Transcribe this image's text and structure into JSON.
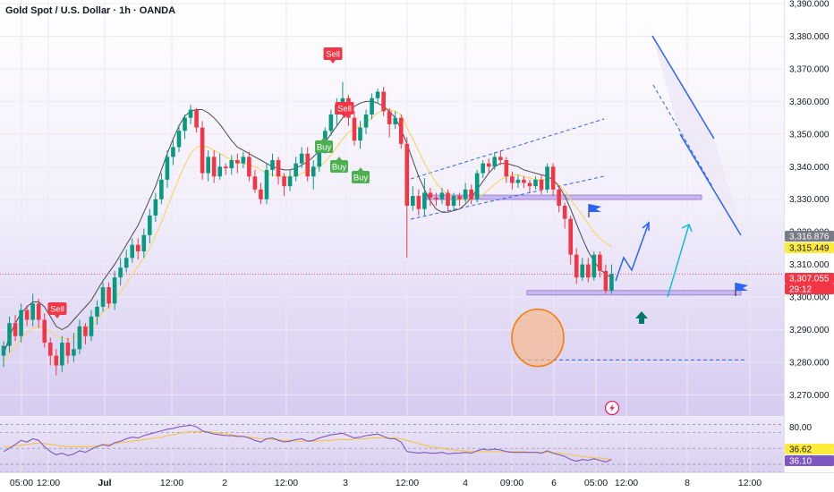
{
  "chart_data": {
    "type": "candlestick",
    "title": "Gold Spot / U.S. Dollar · 1h · OANDA",
    "price_axis": {
      "labels": [
        "3,390.000",
        "3,380.000",
        "3,370.000",
        "3,360.000",
        "3,350.000",
        "3,340.000",
        "3,330.000",
        "3,320.000",
        "3,310.000",
        "3,300.000",
        "3,290.000",
        "3,280.000",
        "3,270.000"
      ],
      "values": [
        3390,
        3380,
        3370,
        3360,
        3350,
        3340,
        3330,
        3320,
        3310,
        3300,
        3290,
        3280,
        3270
      ],
      "ylim": [
        3263.5,
        3391
      ]
    },
    "time_axis": {
      "labels": [
        "05:00",
        "12:00",
        "Jul",
        "12:00",
        "2",
        "12:00",
        "3",
        "12:00",
        "4",
        "09:00",
        "6",
        "05:00",
        "12:00",
        "8",
        "12:00"
      ],
      "bold": [
        false,
        false,
        true,
        false,
        false,
        false,
        false,
        false,
        false,
        false,
        false,
        false,
        false,
        false,
        false
      ]
    },
    "price_tags": [
      {
        "label": "3,316.876",
        "value": 3316.876,
        "bg": "#787b86",
        "fg": "#ffffff"
      },
      {
        "label": "3,315.449",
        "value": 3315.449,
        "bg": "#ffeb3b",
        "fg": "#131722"
      },
      {
        "label": "3,307.055",
        "value": 3307.055,
        "bg": "#f23645",
        "fg": "#ffffff"
      },
      {
        "label": "29:12",
        "value": 3304.6,
        "bg": "#f23645",
        "fg": "#ffffff"
      }
    ],
    "current_price": 3307.055,
    "candles": [
      [
        3282.0,
        3285.0,
        3278.5,
        3286.5
      ],
      [
        3285.0,
        3292.0,
        3283.0,
        3294.0
      ],
      [
        3292.0,
        3288.0,
        3286.5,
        3294.5
      ],
      [
        3288.0,
        3296.0,
        3286.0,
        3298.0
      ],
      [
        3296.0,
        3293.0,
        3291.0,
        3297.5
      ],
      [
        3293.0,
        3298.0,
        3291.0,
        3301.0
      ],
      [
        3298.0,
        3293.0,
        3290.5,
        3299.5
      ],
      [
        3293.0,
        3286.0,
        3284.5,
        3295.0
      ],
      [
        3286.0,
        3282.0,
        3279.0,
        3287.5
      ],
      [
        3282.0,
        3279.0,
        3276.0,
        3284.0
      ],
      [
        3279.0,
        3286.0,
        3277.0,
        3288.0
      ],
      [
        3286.0,
        3282.0,
        3279.5,
        3287.5
      ],
      [
        3282.0,
        3284.0,
        3280.0,
        3289.0
      ],
      [
        3284.0,
        3291.0,
        3282.5,
        3293.0
      ],
      [
        3291.0,
        3288.0,
        3285.5,
        3292.0
      ],
      [
        3288.0,
        3294.0,
        3286.5,
        3296.0
      ],
      [
        3294.0,
        3297.0,
        3291.5,
        3299.0
      ],
      [
        3297.0,
        3303.0,
        3295.5,
        3304.5
      ],
      [
        3303.0,
        3298.0,
        3296.5,
        3304.5
      ],
      [
        3298.0,
        3306.0,
        3296.0,
        3308.0
      ],
      [
        3306.0,
        3309.0,
        3303.5,
        3312.0
      ],
      [
        3309.0,
        3312.0,
        3307.5,
        3314.5
      ],
      [
        3312.0,
        3316.0,
        3310.5,
        3318.0
      ],
      [
        3316.0,
        3314.0,
        3311.5,
        3318.0
      ],
      [
        3314.0,
        3319.0,
        3312.0,
        3321.0
      ],
      [
        3319.0,
        3325.0,
        3316.5,
        3327.0
      ],
      [
        3325.0,
        3330.0,
        3323.0,
        3332.0
      ],
      [
        3330.0,
        3336.0,
        3328.5,
        3338.0
      ],
      [
        3336.0,
        3343.0,
        3333.5,
        3345.0
      ],
      [
        3343.0,
        3346.0,
        3340.5,
        3348.0
      ],
      [
        3346.0,
        3351.0,
        3344.5,
        3353.0
      ],
      [
        3351.0,
        3355.0,
        3348.5,
        3356.0
      ],
      [
        3355.0,
        3357.5,
        3353.0,
        3359.0
      ],
      [
        3357.5,
        3352.0,
        3350.5,
        3358.0
      ],
      [
        3352.0,
        3338.0,
        3336.0,
        3354.0
      ],
      [
        3338.0,
        3343.0,
        3335.5,
        3345.0
      ],
      [
        3343.0,
        3337.0,
        3335.0,
        3345.0
      ],
      [
        3337.0,
        3340.0,
        3336.0,
        3344.0
      ],
      [
        3340.0,
        3339.5,
        3337.5,
        3341.0
      ],
      [
        3339.5,
        3342.0,
        3337.5,
        3343.5
      ],
      [
        3342.0,
        3341.0,
        3338.0,
        3344.0
      ],
      [
        3341.0,
        3343.0,
        3339.5,
        3344.5
      ],
      [
        3343.0,
        3337.0,
        3335.5,
        3344.5
      ],
      [
        3337.0,
        3333.0,
        3332.0,
        3339.0
      ],
      [
        3333.0,
        3330.0,
        3328.5,
        3335.0
      ],
      [
        3330.0,
        3339.0,
        3328.5,
        3341.0
      ],
      [
        3339.0,
        3342.0,
        3337.0,
        3344.0
      ],
      [
        3342.0,
        3337.0,
        3334.5,
        3343.0
      ],
      [
        3337.0,
        3334.0,
        3331.0,
        3338.0
      ],
      [
        3334.0,
        3337.0,
        3332.5,
        3339.0
      ],
      [
        3337.0,
        3341.0,
        3335.5,
        3343.0
      ],
      [
        3341.0,
        3344.0,
        3339.5,
        3346.0
      ],
      [
        3344.0,
        3337.0,
        3335.5,
        3346.0
      ],
      [
        3337.0,
        3340.0,
        3333.0,
        3342.0
      ],
      [
        3340.0,
        3346.0,
        3338.5,
        3348.0
      ],
      [
        3346.0,
        3351.0,
        3344.0,
        3352.0
      ],
      [
        3351.0,
        3356.0,
        3349.5,
        3357.5
      ],
      [
        3356.0,
        3359.0,
        3352.5,
        3361.0
      ],
      [
        3359.0,
        3361.0,
        3356.0,
        3366.0
      ],
      [
        3361.0,
        3355.0,
        3352.5,
        3362.0
      ],
      [
        3355.0,
        3348.0,
        3346.5,
        3357.0
      ],
      [
        3348.0,
        3352.0,
        3345.5,
        3354.0
      ],
      [
        3352.0,
        3356.0,
        3350.0,
        3357.5
      ],
      [
        3356.0,
        3361.0,
        3354.5,
        3362.5
      ],
      [
        3361.0,
        3363.0,
        3359.5,
        3364.0
      ],
      [
        3363.0,
        3357.0,
        3355.5,
        3364.5
      ],
      [
        3357.0,
        3353.0,
        3349.0,
        3358.0
      ],
      [
        3353.0,
        3355.0,
        3351.5,
        3357.0
      ],
      [
        3355.0,
        3347.0,
        3345.5,
        3356.0
      ],
      [
        3347.0,
        3328.0,
        3312.0,
        3349.0
      ],
      [
        3328.0,
        3331.0,
        3326.5,
        3334.0
      ],
      [
        3331.0,
        3327.0,
        3325.0,
        3333.0
      ],
      [
        3327.0,
        3332.0,
        3325.0,
        3336.5
      ],
      [
        3332.0,
        3330.5,
        3328.0,
        3333.5
      ],
      [
        3330.5,
        3330.0,
        3328.0,
        3332.0
      ],
      [
        3330.0,
        3332.0,
        3328.5,
        3333.5
      ],
      [
        3332.0,
        3328.0,
        3326.5,
        3333.0
      ],
      [
        3328.0,
        3331.0,
        3326.5,
        3332.0
      ],
      [
        3331.0,
        3330.0,
        3328.0,
        3332.0
      ],
      [
        3330.0,
        3333.0,
        3329.0,
        3335.0
      ],
      [
        3333.0,
        3330.0,
        3328.5,
        3334.5
      ],
      [
        3330.0,
        3338.0,
        3329.0,
        3339.0
      ],
      [
        3338.0,
        3341.0,
        3336.5,
        3342.0
      ],
      [
        3341.0,
        3340.0,
        3338.0,
        3342.5
      ],
      [
        3340.0,
        3343.0,
        3339.0,
        3344.5
      ],
      [
        3343.0,
        3342.0,
        3340.5,
        3345.0
      ],
      [
        3342.0,
        3337.0,
        3335.0,
        3343.0
      ],
      [
        3337.0,
        3335.0,
        3333.0,
        3338.5
      ],
      [
        3335.0,
        3336.0,
        3333.5,
        3337.5
      ],
      [
        3336.0,
        3335.0,
        3333.5,
        3337.0
      ],
      [
        3335.0,
        3334.0,
        3332.0,
        3336.0
      ],
      [
        3334.0,
        3336.0,
        3333.0,
        3337.0
      ],
      [
        3336.0,
        3333.0,
        3331.5,
        3337.5
      ],
      [
        3333.0,
        3340.0,
        3332.0,
        3341.0
      ],
      [
        3340.0,
        3333.0,
        3331.0,
        3341.0
      ],
      [
        3333.0,
        3328.0,
        3326.0,
        3334.0
      ],
      [
        3328.0,
        3324.0,
        3321.0,
        3329.0
      ],
      [
        3324.0,
        3313.0,
        3310.0,
        3325.0
      ],
      [
        3313.0,
        3306.0,
        3304.0,
        3315.0
      ],
      [
        3306.0,
        3310.0,
        3305.0,
        3312.0
      ],
      [
        3310.0,
        3306.0,
        3304.5,
        3312.0
      ],
      [
        3306.0,
        3313.0,
        3305.0,
        3314.0
      ],
      [
        3313.0,
        3308.0,
        3306.0,
        3314.0
      ],
      [
        3308.0,
        3302.0,
        3301.0,
        3310.0
      ],
      [
        3302.0,
        3307.055,
        3301.0,
        3310.0
      ]
    ],
    "ma_fast": [
      3280.0,
      3282.5,
      3285.0,
      3287.0,
      3289.0,
      3290.5,
      3291.0,
      3290.5,
      3289.5,
      3288.0,
      3287.5,
      3287.0,
      3287.5,
      3289.0,
      3290.0,
      3291.5,
      3293.0,
      3295.5,
      3297.0,
      3299.0,
      3301.5,
      3304.0,
      3307.0,
      3309.5,
      3312.0,
      3315.0,
      3319.0,
      3323.0,
      3327.5,
      3332.0,
      3336.5,
      3340.5,
      3344.0,
      3346.0,
      3346.5,
      3346.0,
      3345.0,
      3344.0,
      3343.0,
      3342.0,
      3341.5,
      3341.0,
      3340.5,
      3340.0,
      3339.0,
      3338.0,
      3337.5,
      3337.0,
      3337.0,
      3337.0,
      3337.0,
      3338.0,
      3338.5,
      3339.0,
      3340.0,
      3341.5,
      3343.5,
      3346.0,
      3348.5,
      3350.5,
      3351.5,
      3352.5,
      3353.5,
      3355.0,
      3356.5,
      3357.5,
      3357.5,
      3357.0,
      3356.0,
      3352.0,
      3348.5,
      3345.0,
      3341.0,
      3338.0,
      3335.0,
      3333.0,
      3331.5,
      3330.5,
      3330.0,
      3330.0,
      3330.0,
      3330.5,
      3331.5,
      3333.0,
      3334.5,
      3336.0,
      3337.0,
      3337.5,
      3337.5,
      3337.0,
      3336.5,
      3336.0,
      3336.0,
      3336.0,
      3335.5,
      3334.5,
      3332.5,
      3330.0,
      3327.5,
      3325.0,
      3322.5,
      3320.0,
      3318.0,
      3316.5,
      3315.449
    ],
    "ma_slow": [
      3282.0,
      3288.0,
      3292.0,
      3295.0,
      3297.0,
      3298.5,
      3298.5,
      3297.0,
      3294.0,
      3291.0,
      3290.0,
      3291.0,
      3293.0,
      3295.0,
      3297.0,
      3299.0,
      3302.0,
      3305.0,
      3307.5,
      3310.0,
      3313.0,
      3316.0,
      3319.0,
      3322.0,
      3326.0,
      3330.0,
      3334.0,
      3339.0,
      3344.0,
      3348.5,
      3352.5,
      3355.5,
      3357.0,
      3357.5,
      3357.5,
      3356.5,
      3355.0,
      3353.0,
      3350.5,
      3348.0,
      3346.0,
      3345.0,
      3344.0,
      3343.0,
      3342.0,
      3341.0,
      3340.0,
      3339.5,
      3339.0,
      3339.0,
      3339.5,
      3340.5,
      3341.5,
      3343.0,
      3345.0,
      3347.5,
      3350.0,
      3352.5,
      3355.0,
      3357.0,
      3358.5,
      3359.5,
      3360.0,
      3360.0,
      3359.5,
      3358.5,
      3357.0,
      3355.0,
      3351.5,
      3347.0,
      3342.0,
      3337.0,
      3333.0,
      3329.5,
      3327.0,
      3326.0,
      3326.0,
      3326.5,
      3327.0,
      3328.5,
      3330.5,
      3333.0,
      3335.5,
      3338.0,
      3340.0,
      3341.0,
      3341.0,
      3340.5,
      3340.0,
      3339.0,
      3338.5,
      3338.0,
      3337.5,
      3337.0,
      3336.0,
      3334.0,
      3331.0,
      3327.0,
      3322.5,
      3318.0,
      3314.0,
      3311.0,
      3308.5,
      3307.0,
      3306.0
    ],
    "signals": [
      {
        "label": "Sell",
        "type": "sell",
        "bar": 8
      },
      {
        "label": "Sell",
        "type": "sell",
        "bar": 57
      },
      {
        "label": "Sell",
        "type": "sell",
        "bar": 59
      },
      {
        "label": "Buy",
        "type": "buy",
        "bar": 55
      },
      {
        "label": "Buy",
        "type": "buy",
        "bar": 58
      },
      {
        "label": "Buy",
        "type": "buy",
        "bar": 62
      }
    ],
    "horizontal_levels": [
      {
        "value": 3330.6,
        "name": "resistance-zone"
      },
      {
        "value": 3301.3,
        "name": "support-zone"
      },
      {
        "value": 3287.5,
        "name": "target-zone"
      },
      {
        "value": 3280.7,
        "name": "dashed-target"
      }
    ],
    "oscillator": {
      "upper_label": "80.00",
      "value_tags": [
        {
          "label": "36.62",
          "value": 36.62,
          "bg": "#ffeb3b",
          "fg": "#131722"
        },
        {
          "label": "36.10",
          "value": 36.1,
          "bg": "#7e57c2",
          "fg": "#ffffff"
        }
      ],
      "range": [
        20,
        85
      ],
      "levels": [
        80,
        70,
        50,
        30,
        20
      ],
      "line": [
        46,
        50,
        55,
        60,
        58,
        62,
        60,
        52,
        46,
        42,
        44,
        41,
        43,
        47,
        45,
        49,
        52,
        55,
        53,
        57,
        59,
        62,
        64,
        63,
        66,
        68,
        70,
        72,
        74,
        75,
        77,
        78,
        79,
        77,
        72,
        70,
        68,
        67,
        66,
        66,
        65,
        65,
        63,
        60,
        58,
        62,
        63,
        60,
        58,
        59,
        61,
        62,
        59,
        60,
        63,
        65,
        67,
        68,
        69,
        66,
        63,
        64,
        66,
        67,
        68,
        65,
        62,
        62,
        58,
        46,
        45,
        44,
        45,
        44,
        44,
        45,
        43,
        44,
        44,
        45,
        44,
        47,
        49,
        48,
        49,
        48,
        46,
        45,
        45,
        45,
        45,
        45,
        44,
        47,
        44,
        42,
        40,
        36,
        34,
        36,
        35,
        37,
        35,
        33,
        36.1
      ],
      "signal": [
        52,
        52,
        53,
        54,
        55,
        56,
        57,
        56,
        55,
        54,
        53,
        52,
        52,
        52,
        52,
        52,
        53,
        54,
        55,
        56,
        57,
        58,
        59,
        60,
        61,
        62,
        63,
        64,
        66,
        67,
        69,
        70,
        71,
        71,
        71,
        71,
        70,
        69,
        68,
        67,
        66,
        65,
        64,
        63,
        62,
        62,
        61,
        61,
        60,
        60,
        59,
        59,
        59,
        59,
        59,
        60,
        60,
        61,
        61,
        61,
        62,
        62,
        62,
        63,
        63,
        63,
        63,
        63,
        62,
        60,
        58,
        56,
        54,
        52,
        51,
        50,
        49,
        48,
        47,
        47,
        46,
        46,
        46,
        46,
        46,
        46,
        46,
        46,
        46,
        46,
        45,
        45,
        45,
        45,
        45,
        44,
        43,
        42,
        41,
        40,
        39,
        38,
        38,
        37,
        36.62
      ]
    }
  }
}
